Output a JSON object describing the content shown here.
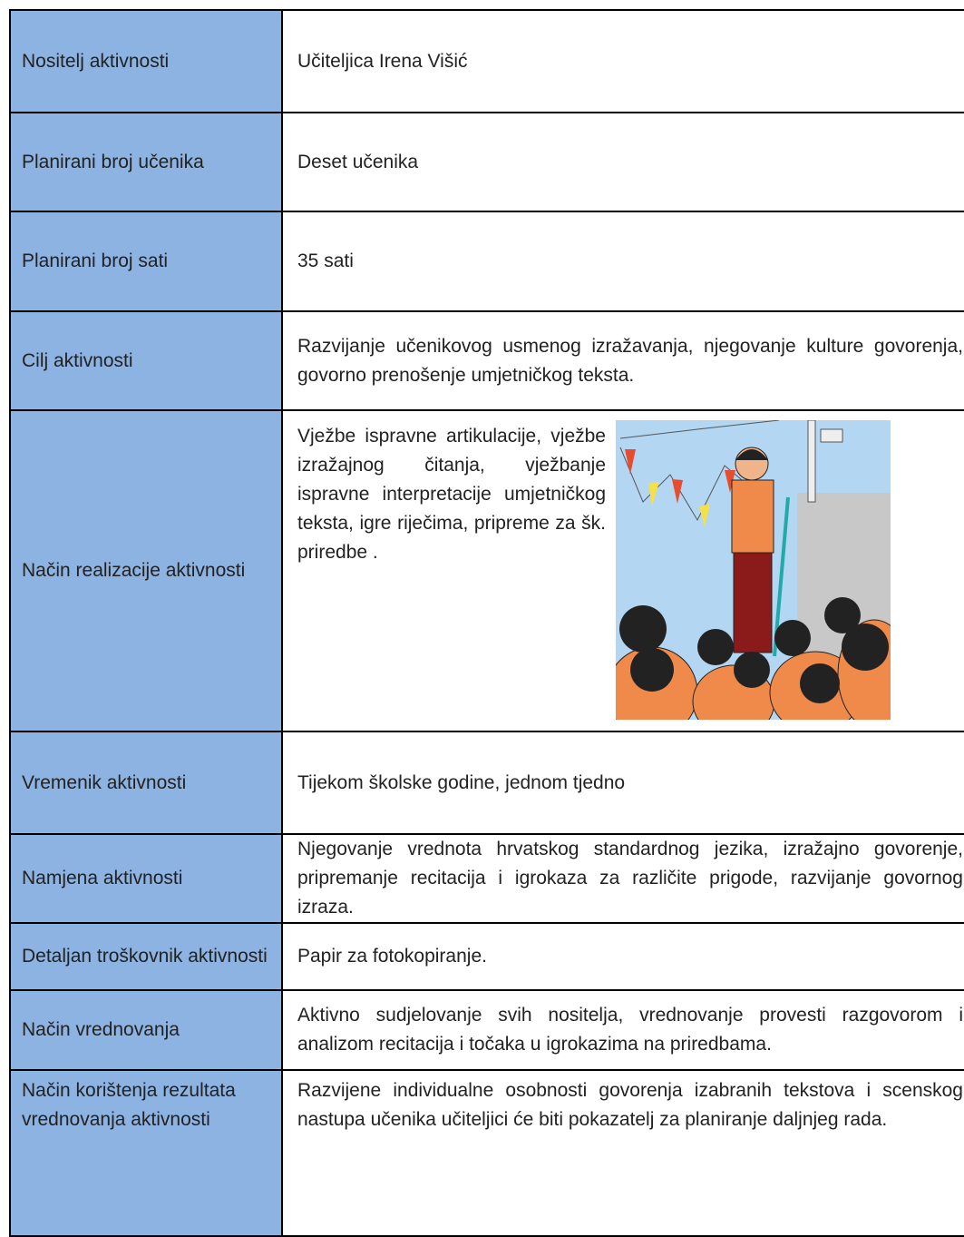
{
  "table": {
    "rows": [
      [
        "Nositelj aktivnosti",
        "Učiteljica  Irena  Višić"
      ],
      [
        "Planirani broj učenika",
        "Deset učenika"
      ],
      [
        "Planirani broj sati",
        "35 sati"
      ],
      [
        "Cilj aktivnosti",
        "Razvijanje učenikovog usmenog izražavanja, njegovanje kulture govorenja, govorno prenošenje umjetničkog teksta."
      ],
      [
        "Način realizacije aktivnosti",
        "Vježbe ispravne artikulacije, vježbe izražajnog čitanja, vježbanje ispravne interpretacije umjetničkog teksta, igre riječima, pripreme za šk. priredbe ."
      ],
      [
        "Vremenik aktivnosti",
        "Tijekom školske godine, jednom tjedno"
      ],
      [
        "Namjena aktivnosti",
        "Njegovanje vrednota hrvatskog standardnog jezika, izražajno govorenje, pripremanje recitacija i igrokaza za različite prigode, razvijanje govornog izraza."
      ],
      [
        "Detaljan troškovnik aktivnosti",
        "Papir za fotokopiranje."
      ],
      [
        "Način vrednovanja",
        "Aktivno sudjelovanje svih nositelja, vrednovanje provesti razgovorom i analizom recitacija i točaka u igrokazima na priredbama."
      ],
      [
        "Način korištenja rezultata vrednovanja aktivnosti",
        "Razvijene individualne osobnosti govorenja izabranih tekstova i scenskog nastupa učenika učiteljici će biti pokazatelj za planiranje daljnjeg rada."
      ]
    ]
  }
}
